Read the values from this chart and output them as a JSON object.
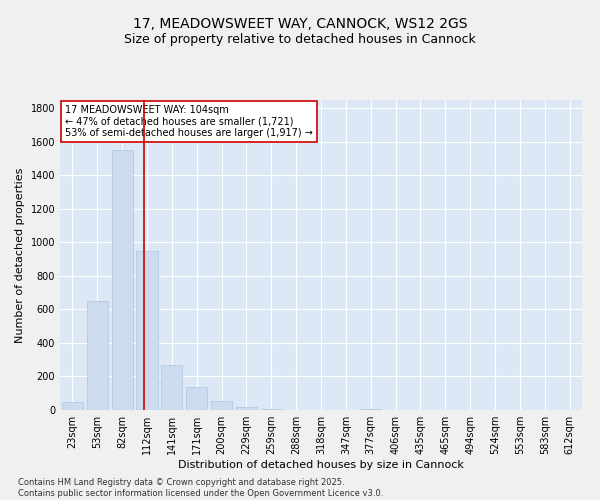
{
  "title": "17, MEADOWSWEET WAY, CANNOCK, WS12 2GS",
  "subtitle": "Size of property relative to detached houses in Cannock",
  "xlabel": "Distribution of detached houses by size in Cannock",
  "ylabel": "Number of detached properties",
  "categories": [
    "23sqm",
    "53sqm",
    "82sqm",
    "112sqm",
    "141sqm",
    "171sqm",
    "200sqm",
    "229sqm",
    "259sqm",
    "288sqm",
    "318sqm",
    "347sqm",
    "377sqm",
    "406sqm",
    "435sqm",
    "465sqm",
    "494sqm",
    "524sqm",
    "553sqm",
    "583sqm",
    "612sqm"
  ],
  "values": [
    50,
    650,
    1550,
    950,
    270,
    135,
    55,
    15,
    5,
    2,
    2,
    1,
    5,
    0,
    0,
    0,
    0,
    0,
    0,
    0,
    0
  ],
  "bar_color": "#ccdcee",
  "bar_edge_color": "#aec6e0",
  "vline_x_index": 2.88,
  "vline_color": "#cc0000",
  "annotation_text": "17 MEADOWSWEET WAY: 104sqm\n← 47% of detached houses are smaller (1,721)\n53% of semi-detached houses are larger (1,917) →",
  "annotation_box_color": "#ffffff",
  "annotation_box_edge": "#cc0000",
  "ylim": [
    0,
    1850
  ],
  "yticks": [
    0,
    200,
    400,
    600,
    800,
    1000,
    1200,
    1400,
    1600,
    1800
  ],
  "bg_color": "#dce8f5",
  "fig_bg_color": "#f0f0f0",
  "footer_line1": "Contains HM Land Registry data © Crown copyright and database right 2025.",
  "footer_line2": "Contains public sector information licensed under the Open Government Licence v3.0.",
  "title_fontsize": 10,
  "subtitle_fontsize": 9,
  "tick_fontsize": 7,
  "ylabel_fontsize": 8,
  "xlabel_fontsize": 8,
  "annotation_fontsize": 7,
  "footer_fontsize": 6
}
